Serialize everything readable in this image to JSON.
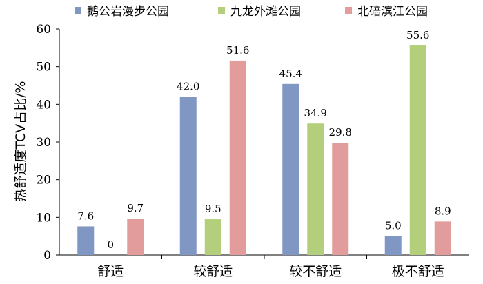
{
  "chart_data": {
    "type": "bar",
    "categories": [
      "舒适",
      "较舒适",
      "较不舒适",
      "极不舒适"
    ],
    "series": [
      {
        "name": "鹅公岩漫步公园",
        "color": "#8096c3",
        "values": [
          7.6,
          42.0,
          45.4,
          5.0
        ]
      },
      {
        "name": "九龙外滩公园",
        "color": "#b3cf7c",
        "values": [
          0,
          9.5,
          34.9,
          55.6
        ]
      },
      {
        "name": "北碚滨江公园",
        "color": "#e39c9c",
        "values": [
          9.7,
          51.6,
          29.8,
          8.9
        ]
      }
    ],
    "value_labels": [
      [
        "7.6",
        "42.0",
        "45.4",
        "5.0"
      ],
      [
        "0",
        "9.5",
        "34.9",
        "55.6"
      ],
      [
        "9.7",
        "51.6",
        "29.8",
        "8.9"
      ]
    ],
    "ylabel": "热舒适度TCV占比/%",
    "ylim": [
      0,
      60
    ],
    "yticks": [
      "0",
      "10",
      "20",
      "30",
      "40",
      "50",
      "60"
    ],
    "grid": false,
    "legend_position": "top"
  }
}
